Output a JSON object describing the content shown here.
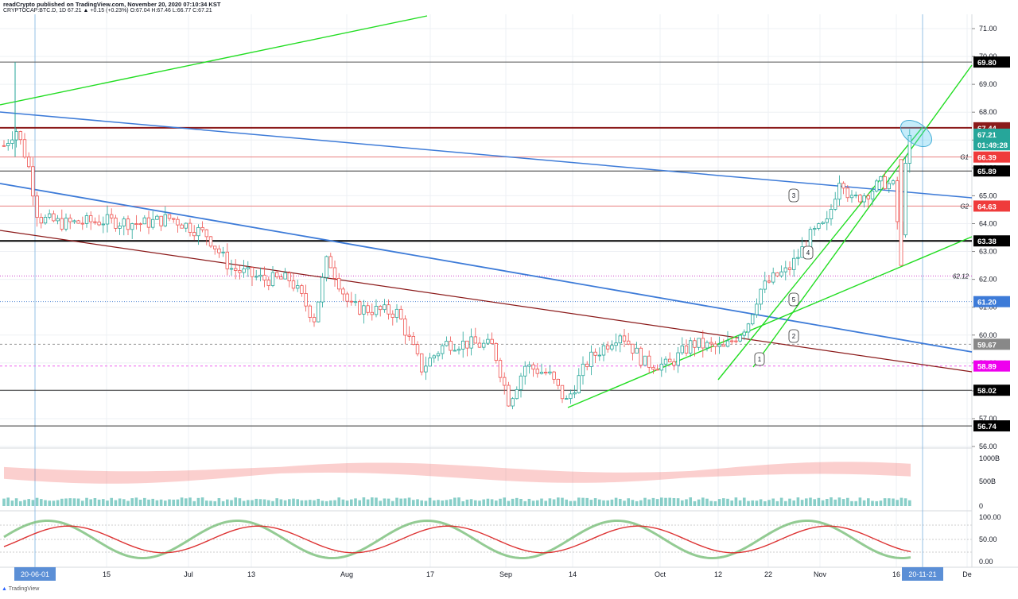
{
  "header": {
    "publisher_line": "readCrypto published on TradingView.com, November 20, 2020 07:10:34 KST",
    "ohlc_line": "CRYPTOCAP:BTC.D, 1D  67.21  ▲ +0.15 (+0.23%)  O:67.04  H:67.46  L:66.77  C:67.21"
  },
  "footer": {
    "brand": "TradingView"
  },
  "colors": {
    "up": "#26a69a",
    "down": "#ef5350",
    "green_line": "#22dd22",
    "blue_line": "#3d7bd8",
    "red_line": "#8b1a1a",
    "grid": "#eef0f4"
  },
  "chart_data": [
    {
      "type": "candlestick",
      "symbol": "CRYPTOCAP:BTC.D",
      "interval": "1D",
      "y_range": [
        56.3,
        71.4
      ],
      "y_ticks": [
        "71.00",
        "70.00",
        "69.00",
        "68.00",
        "67.00",
        "66.00",
        "65.00",
        "64.00",
        "63.00",
        "62.00",
        "61.00",
        "60.00",
        "59.00",
        "58.00",
        "57.00",
        "56.00"
      ],
      "x_labels": [
        "20-06-01",
        "15",
        "Jul",
        "13",
        "Aug",
        "17",
        "Sep",
        "14",
        "Oct",
        "12",
        "22",
        "Nov",
        "16",
        "20-11-21",
        "De"
      ],
      "price_labels": [
        {
          "text": "69.80",
          "value": 69.8,
          "color": "#000000"
        },
        {
          "text": "67.44",
          "value": 67.44,
          "color": "#8b1a1a"
        },
        {
          "text": "67.21",
          "value": 67.21,
          "color": "#26a69a"
        },
        {
          "text": "01:49:28",
          "value": 66.83,
          "color": "#26a69a"
        },
        {
          "text": "66.39",
          "value": 66.39,
          "color": "#ef3b3b"
        },
        {
          "text": "65.89",
          "value": 65.89,
          "color": "#000000"
        },
        {
          "text": "64.63",
          "value": 64.63,
          "color": "#ef3b3b"
        },
        {
          "text": "63.38",
          "value": 63.38,
          "color": "#000000"
        },
        {
          "text": "61.20",
          "value": 61.2,
          "color": "#3d7bd8"
        },
        {
          "text": "59.67",
          "value": 59.67,
          "color": "#888888"
        },
        {
          "text": "58.89",
          "value": 58.89,
          "color": "#ee00ee"
        },
        {
          "text": "58.02",
          "value": 58.02,
          "color": "#000000"
        },
        {
          "text": "56.74",
          "value": 56.74,
          "color": "#000000"
        }
      ],
      "line_annotations": [
        {
          "text": "G1",
          "value": 66.39
        },
        {
          "text": "G2",
          "value": 64.63
        },
        {
          "text": "62.12",
          "value": 62.12
        }
      ],
      "wave_labels": [
        "1",
        "2",
        "3",
        "4",
        "5"
      ],
      "current": {
        "open": 67.04,
        "high": 67.46,
        "low": 66.77,
        "close": 67.21
      }
    },
    {
      "type": "volume",
      "y_ticks": [
        "1000B",
        "500B",
        "0"
      ]
    },
    {
      "type": "oscillator",
      "y_ticks": [
        "100.00",
        "50.00",
        "0.00"
      ]
    }
  ]
}
